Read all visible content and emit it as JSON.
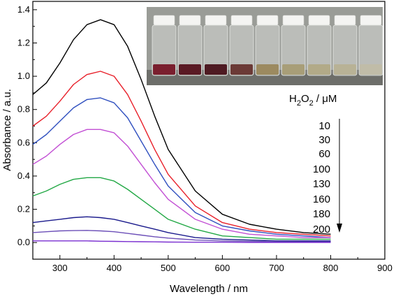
{
  "chart_data": {
    "type": "line",
    "xlabel": "Wavelength / nm",
    "ylabel": "Absorbance / a.u.",
    "xlim": [
      250,
      900
    ],
    "ylim": [
      -0.1,
      1.45
    ],
    "xticks": [
      300,
      400,
      500,
      600,
      700,
      800,
      900
    ],
    "yticks": [
      0.0,
      0.2,
      0.4,
      0.6,
      0.8,
      1.0,
      1.2,
      1.4
    ],
    "xtick_labels": [
      "300",
      "400",
      "500",
      "600",
      "700",
      "800",
      "900"
    ],
    "ytick_labels": [
      "0.0",
      "0.2",
      "0.4",
      "0.6",
      "0.8",
      "1.0",
      "1.2",
      "1.4"
    ],
    "legend_title_main": "H",
    "legend_title_sub1": "2",
    "legend_title_mid": "O",
    "legend_title_sub2": "2",
    "legend_title_unit": " / μM",
    "concentrations": [
      "10",
      "30",
      "60",
      "100",
      "130",
      "160",
      "180",
      "200"
    ],
    "arrow": "down",
    "inset": "photo of eight vials, colour fading from dark red to clear",
    "x": [
      250,
      275,
      300,
      325,
      350,
      375,
      400,
      425,
      450,
      475,
      500,
      550,
      600,
      650,
      700,
      750,
      800
    ],
    "series": [
      {
        "color": "#000000",
        "values": [
          0.89,
          0.96,
          1.08,
          1.22,
          1.31,
          1.34,
          1.31,
          1.18,
          0.98,
          0.76,
          0.56,
          0.31,
          0.17,
          0.11,
          0.08,
          0.06,
          0.05
        ]
      },
      {
        "color": "#e8202a",
        "values": [
          0.7,
          0.76,
          0.85,
          0.95,
          1.01,
          1.03,
          1.0,
          0.89,
          0.73,
          0.56,
          0.41,
          0.22,
          0.12,
          0.08,
          0.06,
          0.05,
          0.04
        ]
      },
      {
        "color": "#2f4fbf",
        "values": [
          0.59,
          0.65,
          0.73,
          0.81,
          0.86,
          0.87,
          0.84,
          0.75,
          0.61,
          0.47,
          0.34,
          0.18,
          0.1,
          0.07,
          0.05,
          0.04,
          0.03
        ]
      },
      {
        "color": "#c24fd4",
        "values": [
          0.47,
          0.52,
          0.59,
          0.65,
          0.68,
          0.68,
          0.66,
          0.58,
          0.47,
          0.36,
          0.26,
          0.14,
          0.08,
          0.05,
          0.04,
          0.03,
          0.03
        ]
      },
      {
        "color": "#22a845",
        "values": [
          0.28,
          0.31,
          0.35,
          0.38,
          0.39,
          0.39,
          0.37,
          0.32,
          0.26,
          0.2,
          0.14,
          0.08,
          0.04,
          0.03,
          0.02,
          0.02,
          0.02
        ]
      },
      {
        "color": "#1a1a8c",
        "values": [
          0.12,
          0.13,
          0.14,
          0.15,
          0.155,
          0.15,
          0.14,
          0.12,
          0.1,
          0.08,
          0.06,
          0.03,
          0.02,
          0.015,
          0.01,
          0.01,
          0.01
        ]
      },
      {
        "color": "#6c4fb8",
        "values": [
          0.06,
          0.065,
          0.07,
          0.072,
          0.073,
          0.07,
          0.065,
          0.055,
          0.045,
          0.035,
          0.027,
          0.015,
          0.01,
          0.007,
          0.005,
          0.004,
          0.004
        ]
      },
      {
        "color": "#7a2fd0",
        "values": [
          0.01,
          0.01,
          0.01,
          0.01,
          0.01,
          0.008,
          0.007,
          0.006,
          0.005,
          0.004,
          0.003,
          0.002,
          0.002,
          0.001,
          0.001,
          0.001,
          0.001
        ]
      }
    ]
  }
}
